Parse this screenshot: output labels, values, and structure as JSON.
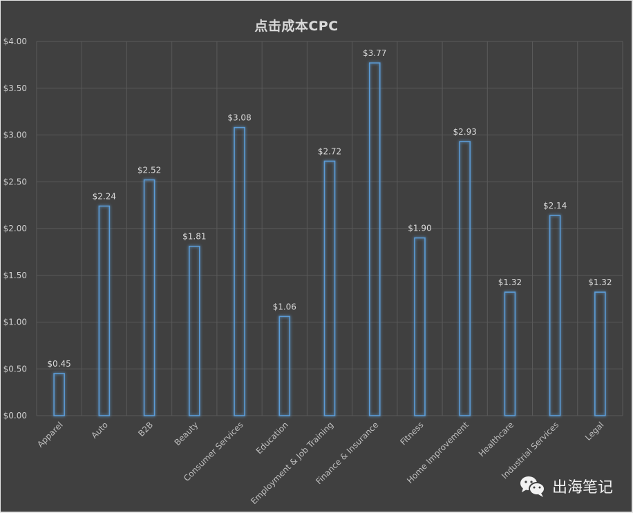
{
  "chart_data": {
    "type": "bar",
    "title": "点击成本CPC",
    "xlabel": "",
    "ylabel": "",
    "ylim": [
      0,
      4
    ],
    "y_ticks": [
      "$0.00",
      "$0.50",
      "$1.00",
      "$1.50",
      "$2.00",
      "$2.50",
      "$3.00",
      "$3.50",
      "$4.00"
    ],
    "grid": true,
    "legend": null,
    "categories": [
      "Apparel",
      "Auto",
      "B2B",
      "Beauty",
      "Consumer Services",
      "Education",
      "Employment & Job Training",
      "Finance & Insurance",
      "Fitness",
      "Home Improvement",
      "Healthcare",
      "Industrial Services",
      "Legal"
    ],
    "values": [
      0.45,
      2.24,
      2.52,
      1.81,
      3.08,
      1.06,
      2.72,
      3.77,
      1.9,
      2.93,
      1.32,
      2.14,
      1.32
    ],
    "data_labels": [
      "$0.45",
      "$2.24",
      "$2.52",
      "$1.81",
      "$3.08",
      "$1.06",
      "$2.72",
      "$3.77",
      "$1.90",
      "$2.93",
      "$1.32",
      "$2.14",
      "$1.32"
    ],
    "colors": {
      "background": "#404040",
      "bar_outline": "#5b9bd5",
      "gridline": "#5a5a5a",
      "text": "#d9d9d9"
    }
  },
  "watermark": {
    "icon": "wechat-icon",
    "text": "出海笔记"
  }
}
